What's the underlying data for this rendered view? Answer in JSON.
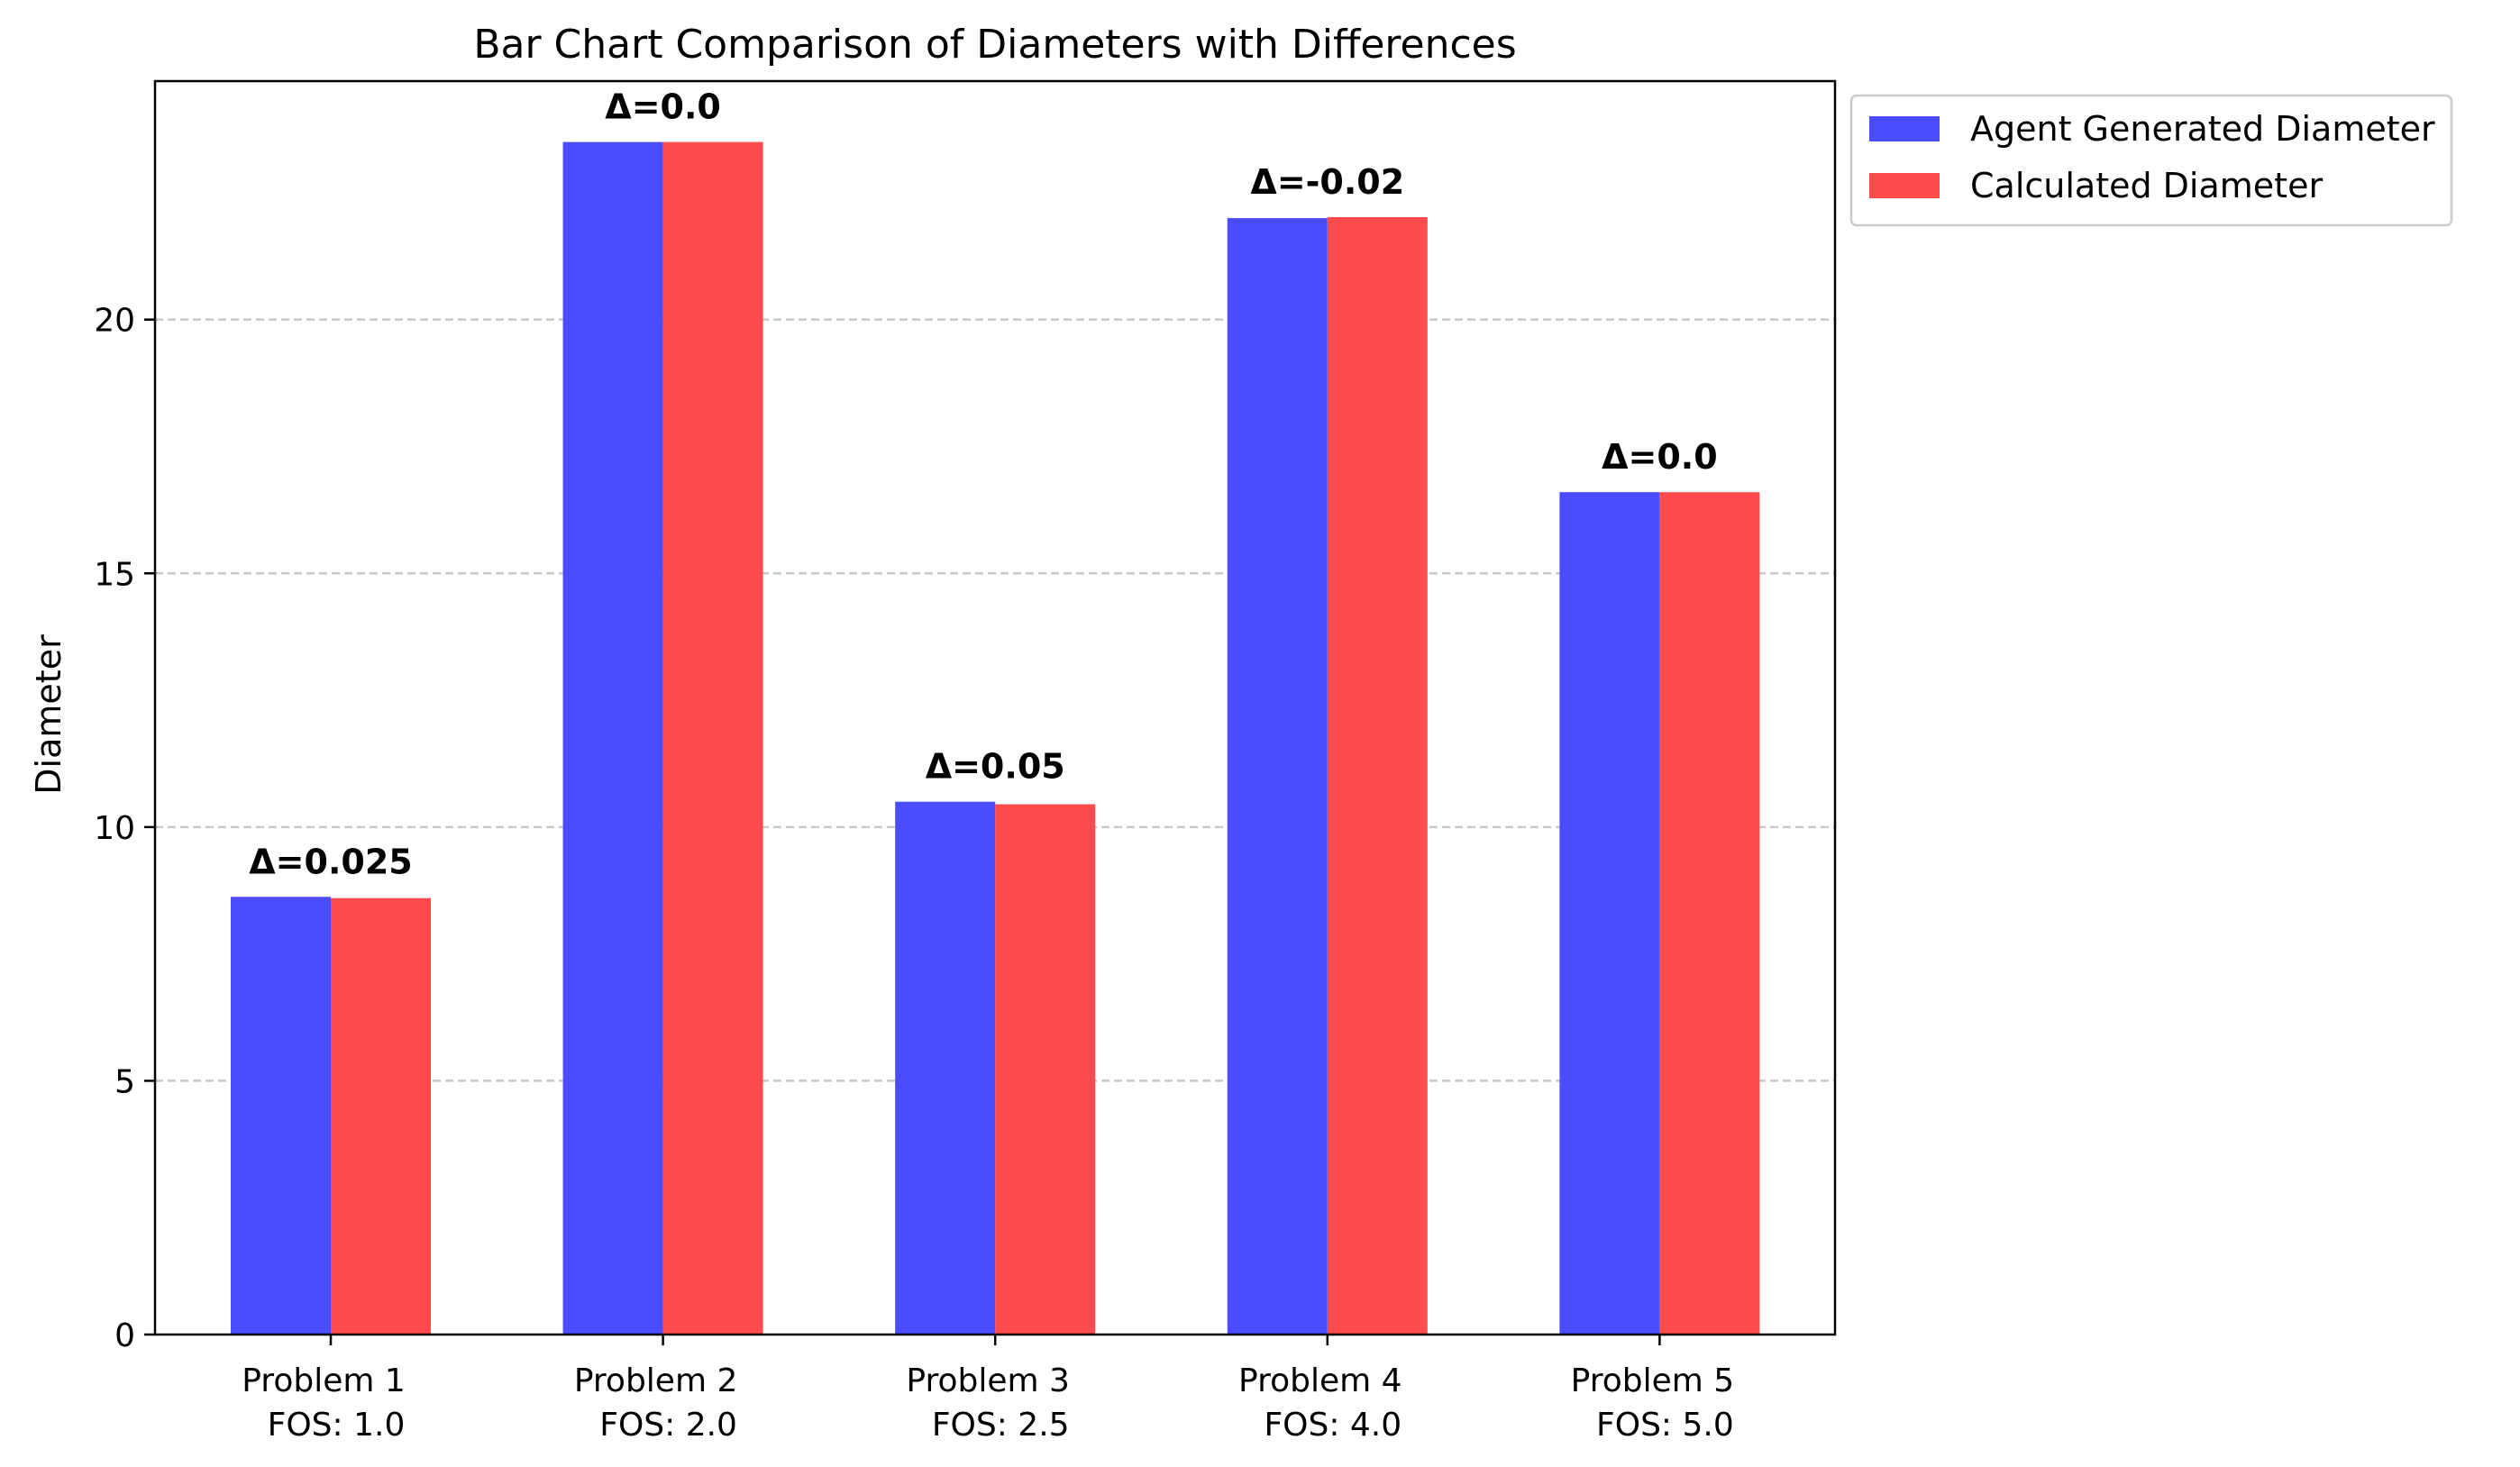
{
  "chart_data": {
    "type": "bar",
    "title": "Bar Chart Comparison of Diameters with Differences",
    "xlabel": "",
    "ylabel": "Diameter",
    "ylim": [
      0,
      24.7
    ],
    "yticks": [
      0,
      5,
      10,
      15,
      20
    ],
    "grid": "y dashed",
    "legend_position": "outside top-right",
    "categories": [
      [
        "Problem 1",
        "FOS: 1.0"
      ],
      [
        "Problem 2",
        "FOS: 2.0"
      ],
      [
        "Problem 3",
        "FOS: 2.5"
      ],
      [
        "Problem 4",
        "FOS: 4.0"
      ],
      [
        "Problem 5",
        "FOS: 5.0"
      ]
    ],
    "series": [
      {
        "name": "Agent Generated Diameter",
        "color": "#4b4bff",
        "values": [
          8.625,
          23.5,
          10.5,
          22.0,
          16.6
        ]
      },
      {
        "name": "Calculated Diameter",
        "color": "#ff4b4b",
        "values": [
          8.6,
          23.5,
          10.45,
          22.02,
          16.6
        ]
      }
    ],
    "annotations": [
      "Δ=0.025",
      "Δ=0.0",
      "Δ=0.05",
      "Δ=-0.02",
      "Δ=0.0"
    ]
  }
}
